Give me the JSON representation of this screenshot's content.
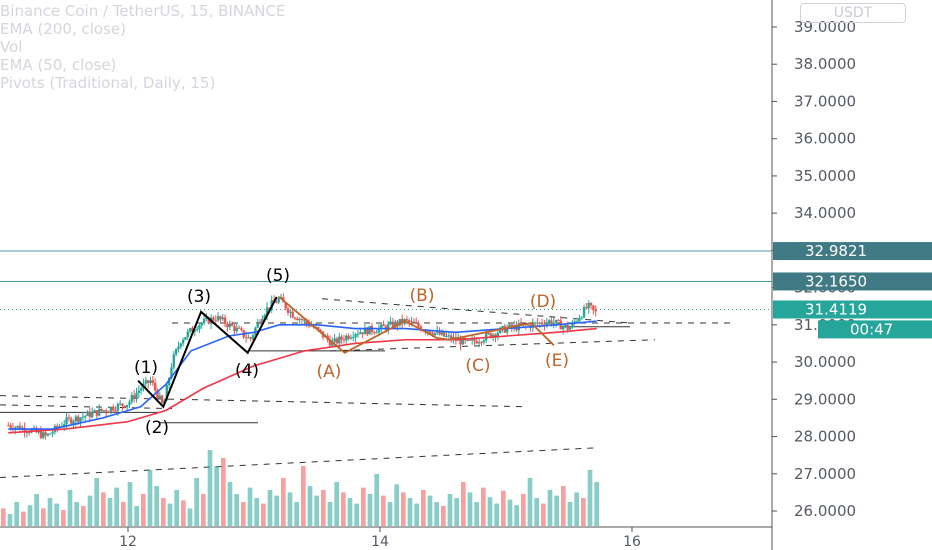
{
  "colors": {
    "price_up": "#26a69a",
    "price_down": "#ef5350",
    "ema200": "#f23645",
    "ema50": "#2962ff",
    "level_line": "#4f9aa8",
    "badge_dark": "#3f7a85",
    "badge_last": "#26a69a",
    "impulse": "#000000",
    "corrective": "#c0642a",
    "grid_axis": "#555555"
  },
  "legend": {
    "symbol": "Binance Coin / TetherUS, 15, BINANCE",
    "ema200": "EMA (200, close)",
    "vol": "Vol",
    "ema50": "EMA (50, close)",
    "pivots": "Pivots (Traditional, Daily, 15)"
  },
  "unit_badge": "USDT",
  "chart_data": {
    "type": "line",
    "title": "Binance Coin / TetherUS, 15, BINANCE",
    "xlabel": "",
    "ylabel": "",
    "x_ticks": [
      "12",
      "14",
      "16"
    ],
    "x_range": [
      11.05,
      16.3
    ],
    "ylim": [
      25.5,
      39.6
    ],
    "y_ticks": [
      "39.0000",
      "38.0000",
      "37.0000",
      "36.0000",
      "35.0000",
      "34.0000",
      "33.0000",
      "32.0000",
      "31.0000",
      "30.0000",
      "29.0000",
      "28.0000",
      "27.0000",
      "26.0000"
    ],
    "y_tick_values": [
      39,
      38,
      37,
      36,
      35,
      34,
      33,
      32,
      31,
      30,
      29,
      28,
      27,
      26
    ],
    "price_path": {
      "x": [
        11.05,
        11.2,
        11.35,
        11.5,
        11.7,
        11.9,
        12.0,
        12.1,
        12.18,
        12.28,
        12.35,
        12.42,
        12.55,
        12.7,
        12.85,
        12.97,
        13.05,
        13.12,
        13.2,
        13.3,
        13.45,
        13.62,
        13.8,
        14.0,
        14.2,
        14.35,
        14.5,
        14.7,
        14.85,
        15.0,
        15.2,
        15.35,
        15.5,
        15.6,
        15.65,
        15.72
      ],
      "y": [
        28.3,
        28.2,
        28.0,
        28.4,
        28.6,
        28.8,
        28.9,
        29.3,
        29.5,
        28.8,
        30.0,
        30.6,
        31.0,
        31.2,
        30.9,
        30.6,
        31.2,
        31.5,
        31.7,
        31.3,
        31.0,
        30.5,
        30.8,
        30.9,
        31.1,
        30.9,
        30.7,
        30.5,
        30.7,
        30.9,
        31.0,
        31.1,
        30.9,
        31.3,
        31.5,
        31.3
      ]
    },
    "series": [
      {
        "name": "EMA (200, close)",
        "x": [
          11.05,
          11.5,
          12.0,
          12.3,
          12.6,
          13.0,
          13.4,
          13.8,
          14.2,
          14.6,
          15.0,
          15.4,
          15.72
        ],
        "y": [
          28.1,
          28.2,
          28.4,
          28.7,
          29.3,
          29.9,
          30.3,
          30.5,
          30.6,
          30.6,
          30.7,
          30.8,
          30.9
        ]
      },
      {
        "name": "EMA (50, close)",
        "x": [
          11.05,
          11.4,
          11.8,
          12.1,
          12.3,
          12.5,
          12.8,
          13.0,
          13.2,
          13.5,
          13.8,
          14.2,
          14.6,
          15.0,
          15.4,
          15.72
        ],
        "y": [
          28.2,
          28.2,
          28.5,
          28.8,
          29.4,
          30.3,
          30.7,
          30.8,
          31.0,
          31.0,
          30.9,
          30.9,
          30.8,
          30.9,
          31.0,
          31.1
        ]
      }
    ],
    "impulse_wave": {
      "x": [
        12.08,
        12.28,
        12.58,
        12.95,
        13.18
      ],
      "y": [
        29.5,
        28.8,
        31.35,
        30.25,
        31.75
      ],
      "labels": [
        "(1)",
        "(2)",
        "(3)",
        "(4)",
        "(5)"
      ]
    },
    "corrective_wave": {
      "x": [
        13.2,
        13.72,
        14.2,
        14.45,
        14.55,
        15.2,
        15.38
      ],
      "y": [
        31.75,
        30.25,
        31.1,
        30.65,
        30.6,
        31.05,
        30.45
      ],
      "labels": [
        "(A)",
        "(B)",
        "(C)",
        "(D)",
        "(E)"
      ]
    },
    "horizontal_levels": [
      32.9821,
      32.165
    ],
    "price_badges": [
      {
        "value": 32.9821,
        "label": "32.9821"
      },
      {
        "value": 32.165,
        "label": "32.1650"
      },
      {
        "value": 31.4119,
        "label": "31.4119"
      },
      {
        "value": 31.2,
        "label": "00:47"
      }
    ],
    "volume": [
      22,
      15,
      30,
      18,
      26,
      40,
      22,
      35,
      28,
      20,
      45,
      30,
      25,
      38,
      60,
      42,
      35,
      48,
      30,
      55,
      25,
      40,
      70,
      50,
      35,
      28,
      45,
      32,
      22,
      60,
      40,
      95,
      75,
      85,
      55,
      40,
      30,
      48,
      35,
      28,
      45,
      38,
      60,
      42,
      30,
      75,
      50,
      38,
      45,
      30,
      55,
      42,
      35,
      28,
      48,
      40,
      65,
      38,
      30,
      52,
      42,
      35,
      28,
      45,
      38,
      30,
      25,
      40,
      35,
      55,
      42,
      30,
      48,
      36,
      28,
      44,
      33,
      26,
      40,
      60,
      35,
      28,
      45,
      38,
      50,
      30,
      42,
      35,
      70,
      55
    ]
  }
}
